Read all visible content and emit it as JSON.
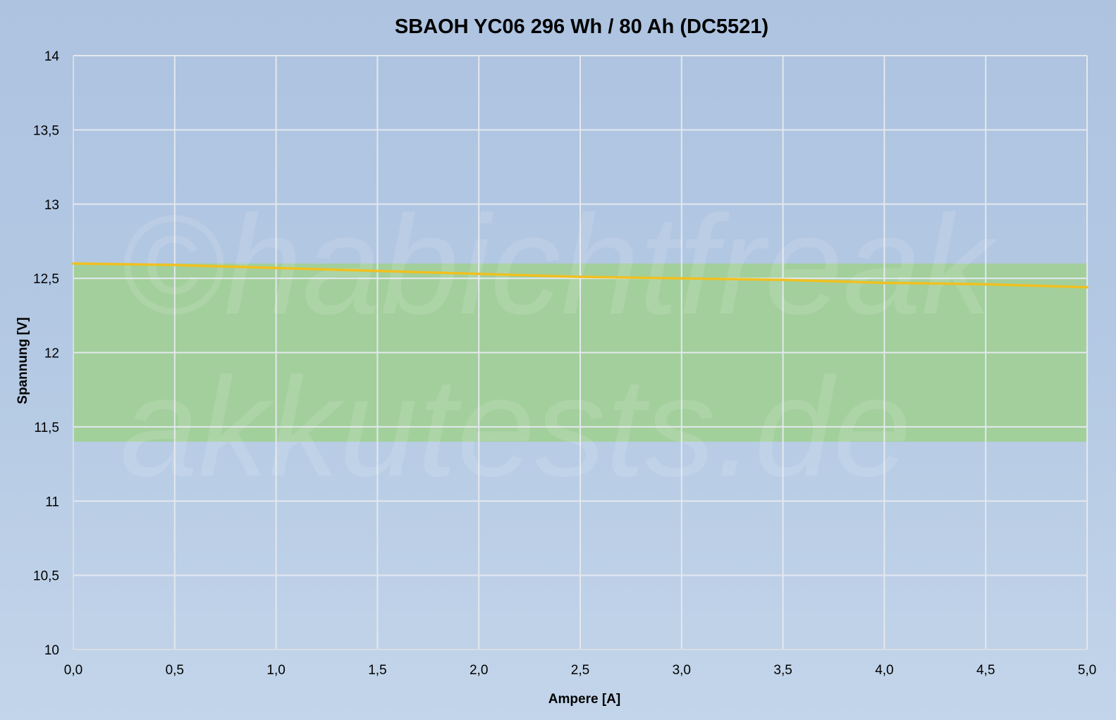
{
  "chart_data": {
    "type": "line",
    "title": "SBAOH YC06 296 Wh / 80 Ah (DC5521)",
    "xlabel": "Ampere [A]",
    "ylabel": "Spannung [V]",
    "xlim": [
      0,
      5
    ],
    "ylim": [
      10,
      14
    ],
    "x_ticks": [
      "0,0",
      "0,5",
      "1,0",
      "1,5",
      "2,0",
      "2,5",
      "3,0",
      "3,5",
      "4,0",
      "4,5",
      "5,0"
    ],
    "y_ticks": [
      "10",
      "10,5",
      "11",
      "11,5",
      "12",
      "12,5",
      "13",
      "13,5",
      "14"
    ],
    "grid": true,
    "legend": "none",
    "band": {
      "y_min": 11.4,
      "y_max": 12.6,
      "color": "#9fd08e"
    },
    "series": [
      {
        "color": "#f0c020",
        "x": [
          0,
          0.5,
          1.0,
          1.5,
          2.0,
          2.5,
          3.0,
          3.5,
          4.0,
          4.5,
          5.0
        ],
        "y": [
          12.6,
          12.59,
          12.57,
          12.55,
          12.53,
          12.51,
          12.5,
          12.49,
          12.47,
          12.46,
          12.44
        ]
      }
    ],
    "watermark": [
      "©habichtfreak",
      "akkutests.de"
    ]
  }
}
